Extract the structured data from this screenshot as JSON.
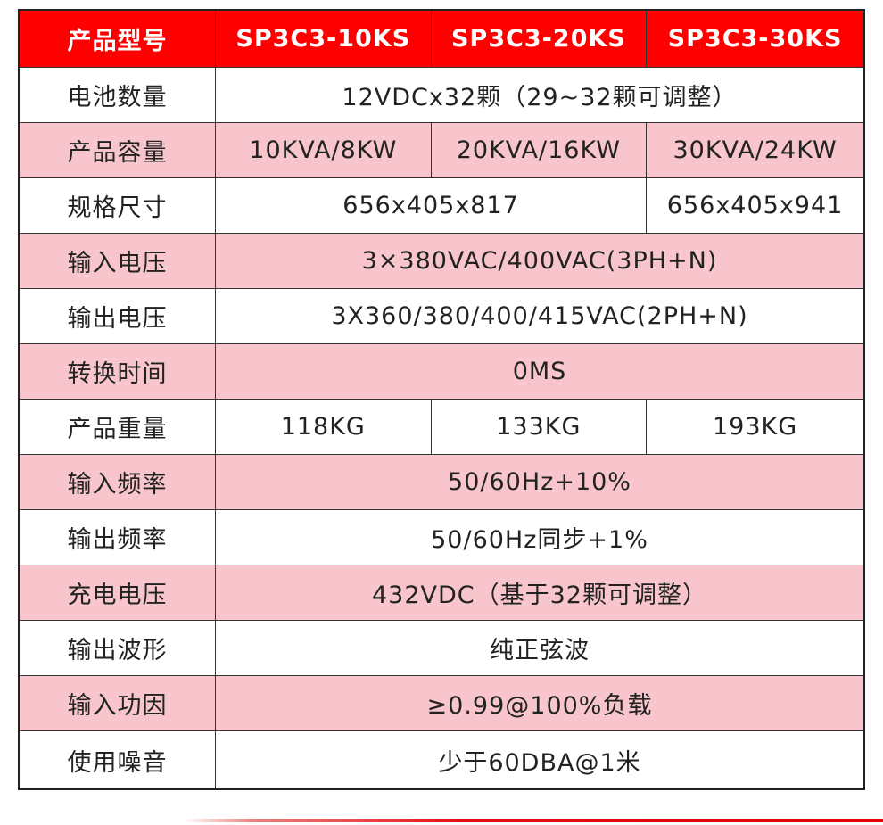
{
  "header": {
    "label": "产品型号",
    "models": [
      "SP3C3-10KS",
      "SP3C3-20KS",
      "SP3C3-30KS"
    ]
  },
  "rows": [
    {
      "label": "电池数量",
      "value": "12VDCx32颗（29~32颗可调整）"
    },
    {
      "label": "产品容量",
      "values": [
        "10KVA/8KW",
        "20KVA/16KW",
        "30KVA/24KW"
      ]
    },
    {
      "label": "规格尺寸",
      "values": [
        "656x405x817",
        "656x405x941"
      ]
    },
    {
      "label": "输入电压",
      "value": "3×380VAC/400VAC(3PH+N)"
    },
    {
      "label": "输出电压",
      "value": "3X360/380/400/415VAC(2PH+N)"
    },
    {
      "label": "转换时间",
      "value": "0MS"
    },
    {
      "label": "产品重量",
      "values": [
        "118KG",
        "133KG",
        "193KG"
      ]
    },
    {
      "label": "输入频率",
      "value": "50/60Hz+10%"
    },
    {
      "label": "输出频率",
      "value": "50/60Hz同步+1%"
    },
    {
      "label": "充电电压",
      "value": "432VDC（基于32颗可调整）"
    },
    {
      "label": "输出波形",
      "value": "纯正弦波"
    },
    {
      "label": "输入功因",
      "value": "≥0.99@100%负载"
    },
    {
      "label": "使用噪音",
      "value": "少于60DBA@1米"
    }
  ],
  "colors": {
    "header": "#ff0000",
    "pink_row": "#f7c5cb"
  }
}
